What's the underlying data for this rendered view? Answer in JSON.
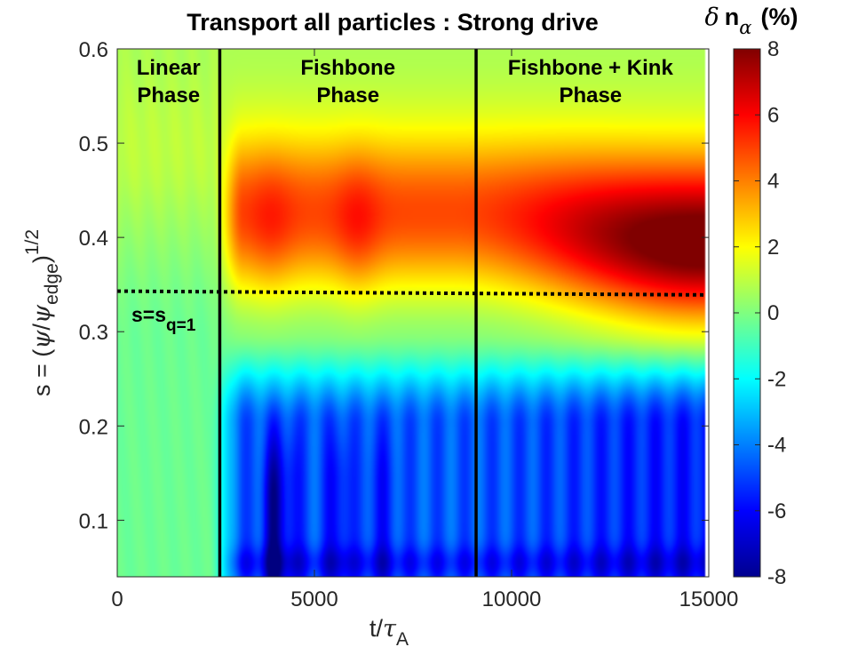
{
  "chart_data": {
    "type": "heatmap",
    "title": "Transport all particles : Strong drive",
    "xlabel": {
      "base": "t/",
      "sym": "τ",
      "sub": "A"
    },
    "ylabel": {
      "prefix": "s = (",
      "psi1": "ψ",
      "slash": "/",
      "psi2": "ψ",
      "sub": "edge",
      "close": ")",
      "sup": "1/2"
    },
    "xlim": [
      0,
      15000
    ],
    "ylim": [
      0.04,
      0.6
    ],
    "xticks": [
      "0",
      "5000",
      "10000",
      "15000"
    ],
    "xtick_values": [
      0,
      5000,
      10000,
      15000
    ],
    "yticks": [
      "0.1",
      "0.2",
      "0.3",
      "0.4",
      "0.5",
      "0.6"
    ],
    "ytick_values": [
      0.1,
      0.2,
      0.3,
      0.4,
      0.5,
      0.6
    ],
    "data_x_extent": [
      0,
      14900
    ],
    "colorbar": {
      "label_sym": "δ",
      "label_n": "n",
      "label_sub": "α",
      "label_unit": "(%)",
      "range": [
        -8,
        8
      ],
      "ticks": [
        "8",
        "6",
        "4",
        "2",
        "0",
        "-2",
        "-4",
        "-6",
        "-8"
      ],
      "tick_values": [
        8,
        6,
        4,
        2,
        0,
        -2,
        -4,
        -6,
        -8
      ],
      "colormap": "jet"
    },
    "phase_boundaries": [
      2600,
      9100
    ],
    "phases": [
      {
        "line1": "Linear",
        "line2": "Phase",
        "x_center": 1300
      },
      {
        "line1": "Fishbone",
        "line2": "Phase",
        "x_center": 5850
      },
      {
        "line1": "Fishbone + Kink",
        "line2": "Phase",
        "x_center": 12000
      }
    ],
    "q1_surface": {
      "label": "s=s",
      "label_sub": "q=1",
      "y_start": 0.343,
      "y_end": 0.339
    },
    "field_description": "delta n_alpha (%) versus time and radius: near 0 in linear phase; +3 to +8 band at s~0.35-0.45 and -4 to -8 below s~0.25 after t~2600"
  }
}
